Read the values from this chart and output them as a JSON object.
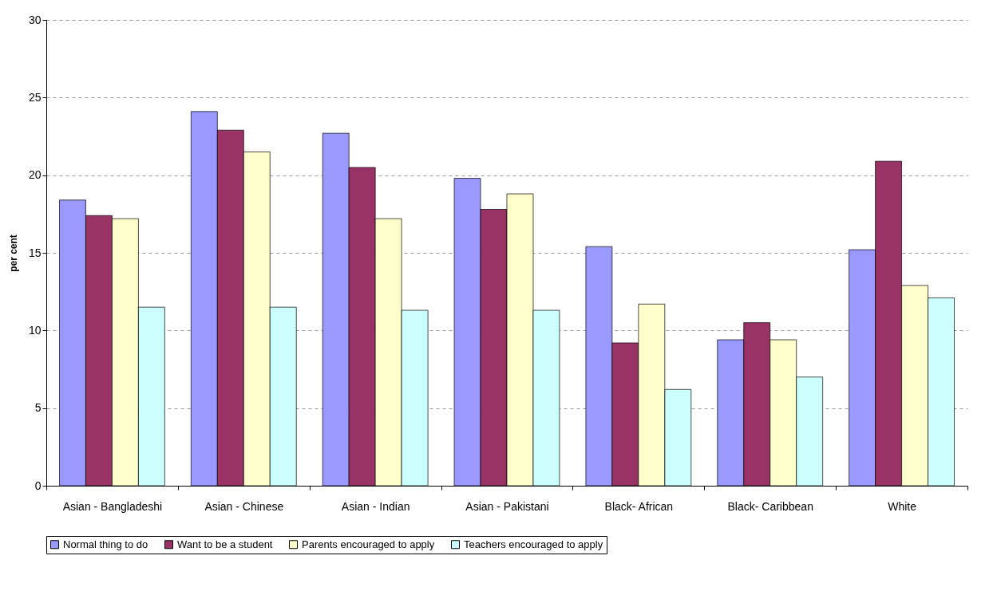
{
  "chart_data": {
    "type": "bar",
    "ylabel": "per cent",
    "categories": [
      "Asian - Bangladeshi",
      "Asian - Chinese",
      "Asian - Indian",
      "Asian - Pakistani",
      "Black- African",
      "Black- Caribbean",
      "White"
    ],
    "series": [
      {
        "name": "Normal thing to do",
        "color": "#9999ff",
        "values": [
          18.4,
          24.1,
          22.7,
          19.8,
          15.4,
          9.4,
          15.2
        ]
      },
      {
        "name": "Want to be a student",
        "color": "#993366",
        "values": [
          17.4,
          22.9,
          20.5,
          17.8,
          9.2,
          10.5,
          20.9
        ]
      },
      {
        "name": "Parents encouraged to apply",
        "color": "#ffffcc",
        "values": [
          17.2,
          21.5,
          17.2,
          18.8,
          11.7,
          9.4,
          12.9
        ]
      },
      {
        "name": "Teachers encouraged to apply",
        "color": "#ccffff",
        "values": [
          11.5,
          11.5,
          11.3,
          11.3,
          6.2,
          7.0,
          12.1
        ]
      }
    ],
    "ylim": [
      0,
      30
    ],
    "yticks": [
      0,
      5,
      10,
      15,
      20,
      25,
      30
    ],
    "grid": "y",
    "legend": "bottom"
  }
}
